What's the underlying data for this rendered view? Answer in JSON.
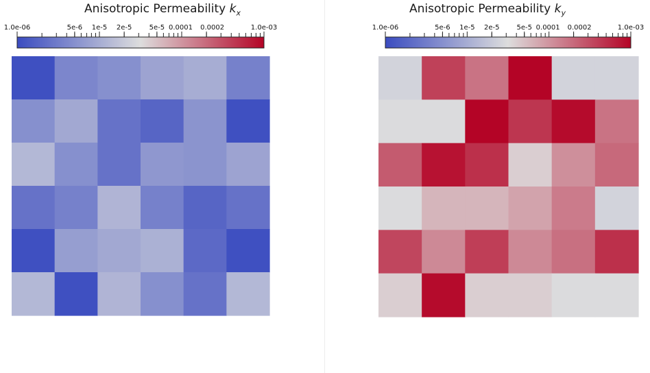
{
  "chart_data": [
    {
      "type": "heatmap",
      "title": "Anisotropic Permeability",
      "title_var": "k",
      "title_sub": "x",
      "colorbar": {
        "scale": "log",
        "range": [
          1e-06,
          0.001
        ],
        "colormap": "coolwarm",
        "colors": [
          "#3b4cc0",
          "#dddddd",
          "#b40426"
        ],
        "tick_labels": [
          "1.0e-06",
          "5e-6",
          "1e-5",
          "2e-5",
          "5e-5",
          "0.0001",
          "0.0002",
          "1.0e-03"
        ],
        "tick_values": [
          1e-06,
          5e-06,
          1e-05,
          2e-05,
          5e-05,
          0.0001,
          0.0002,
          0.001
        ]
      },
      "grid": [
        [
          1.1e-06,
          4e-06,
          5e-06,
          8e-06,
          1e-05,
          3.5e-06
        ],
        [
          5e-06,
          9e-06,
          2.5e-06,
          1.8e-06,
          5.5e-06,
          1.1e-06
        ],
        [
          1.3e-05,
          5e-06,
          2.5e-06,
          6e-06,
          5.5e-06,
          8e-06
        ],
        [
          2.5e-06,
          3.5e-06,
          1.2e-05,
          3.5e-06,
          1.8e-06,
          2.5e-06
        ],
        [
          1.1e-06,
          7e-06,
          9e-06,
          1.1e-05,
          2e-06,
          1.1e-06
        ],
        [
          1.3e-05,
          1.1e-06,
          1.2e-05,
          5e-06,
          2.5e-06,
          1.3e-05
        ]
      ]
    },
    {
      "type": "heatmap",
      "title": "Anisotropic Permeability",
      "title_var": "k",
      "title_sub": "y",
      "colorbar": {
        "scale": "log",
        "range": [
          1e-06,
          0.001
        ],
        "colormap": "coolwarm",
        "colors": [
          "#3b4cc0",
          "#dddddd",
          "#b40426"
        ],
        "tick_labels": [
          "1.0e-06",
          "5e-6",
          "1e-5",
          "2e-5",
          "5e-5",
          "0.0001",
          "0.0002",
          "1.0e-03"
        ],
        "tick_values": [
          1e-06,
          5e-06,
          1e-05,
          2e-05,
          5e-05,
          0.0001,
          0.0002,
          0.001
        ]
      },
      "grid": [
        [
          2.5e-05,
          0.00038,
          0.00017,
          0.001,
          2.5e-05,
          2.5e-05
        ],
        [
          3e-05,
          3e-05,
          0.001,
          0.00045,
          0.0009,
          0.00017
        ],
        [
          0.00025,
          0.0008,
          0.0005,
          4e-05,
          0.00011,
          0.0002
        ],
        [
          3e-05,
          6e-05,
          6e-05,
          8e-05,
          0.00015,
          2.5e-05
        ],
        [
          0.00035,
          0.00012,
          0.0004,
          0.00012,
          0.00018,
          0.0005
        ],
        [
          4e-05,
          0.0009,
          4e-05,
          4e-05,
          3e-05,
          3e-05
        ]
      ]
    }
  ]
}
